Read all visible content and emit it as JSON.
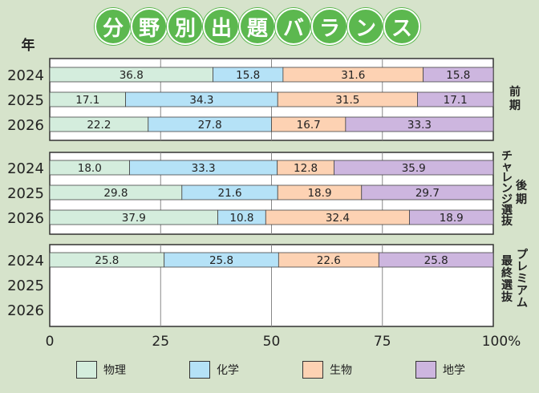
{
  "title_chars": [
    "分",
    "野",
    "別",
    "出",
    "題",
    "バ",
    "ラ",
    "ン",
    "ス"
  ],
  "year_header": "年",
  "panels": [
    {
      "label": "前期",
      "label_lines": [
        "前",
        "期"
      ]
    },
    {
      "label": "後期 チャレンジ選抜",
      "label_lines": [
        "後",
        "期"
      ],
      "label_lines2": [
        "チ",
        "ャ",
        "レ",
        "ン",
        "ジ",
        "選",
        "抜"
      ]
    },
    {
      "label": "プレミアム最終選抜",
      "label_lines": [
        "プ",
        "レ",
        "ミ",
        "ア",
        "ム"
      ],
      "label_lines2": [
        "最",
        "終",
        "選",
        "抜"
      ]
    }
  ],
  "legend": [
    {
      "name": "物理",
      "color": "#d4eddd"
    },
    {
      "name": "化学",
      "color": "#b5e2f7"
    },
    {
      "name": "生物",
      "color": "#fdd2b3"
    },
    {
      "name": "地学",
      "color": "#cdb6df"
    }
  ],
  "chart_data": {
    "type": "bar",
    "stacked": true,
    "orientation": "horizontal",
    "xlim": [
      0,
      100
    ],
    "xticks": [
      "0",
      "25",
      "50",
      "75",
      "100%"
    ],
    "series_names": [
      "物理",
      "化学",
      "生物",
      "地学"
    ],
    "groups": [
      {
        "label": "前期",
        "rows": [
          {
            "year": "2024",
            "values": [
              36.8,
              15.8,
              31.6,
              15.8
            ]
          },
          {
            "year": "2025",
            "values": [
              17.1,
              34.3,
              31.5,
              17.1
            ]
          },
          {
            "year": "2026",
            "values": [
              22.2,
              27.8,
              16.7,
              33.3
            ]
          }
        ]
      },
      {
        "label": "後期チャレンジ選抜",
        "rows": [
          {
            "year": "2024",
            "values": [
              18.0,
              33.3,
              12.8,
              35.9
            ]
          },
          {
            "year": "2025",
            "values": [
              29.8,
              21.6,
              18.9,
              29.7
            ]
          },
          {
            "year": "2026",
            "values": [
              37.9,
              10.8,
              32.4,
              18.9
            ]
          }
        ]
      },
      {
        "label": "プレミアム最終選抜",
        "rows": [
          {
            "year": "2024",
            "values": [
              25.8,
              25.8,
              22.6,
              25.8
            ]
          },
          {
            "year": "2025",
            "values": []
          },
          {
            "year": "2026",
            "values": []
          }
        ]
      }
    ],
    "data_label_texts": [
      [
        "36.8",
        "15.8",
        "31.6",
        "15.8"
      ],
      [
        "17.1",
        "34.3",
        "31.5",
        "17.1"
      ],
      [
        "22.2",
        "27.8",
        "16.7",
        "33.3"
      ],
      [
        "18.0",
        "33.3",
        "12.8",
        "35.9"
      ],
      [
        "29.8",
        "21.6",
        "18.9",
        "29.7"
      ],
      [
        "37.9",
        "10.8",
        "32.4",
        "18.9"
      ],
      [
        "25.8",
        "25.8",
        "22.6",
        "25.8"
      ]
    ]
  }
}
